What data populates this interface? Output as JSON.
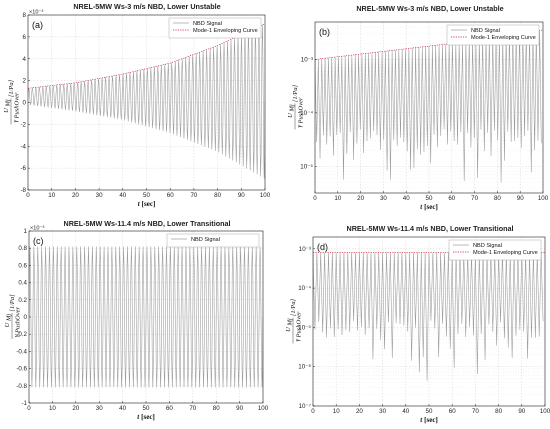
{
  "chart_data": [
    {
      "type": "line",
      "panel_label": "(a)",
      "title": "NREL-5MW Ws-3 m/s NBD, Lower Unstable",
      "xlabel_var": "t",
      "xlabel_unit": "[sec]",
      "ylabel_html": "U_Mj / γ_PushOver [1/Pa]",
      "yscale": "linear",
      "exponent_label": "×10⁻³",
      "xlim": [
        0,
        100
      ],
      "ylim": [
        -8,
        8
      ],
      "xticks": [
        "0",
        "10",
        "20",
        "30",
        "40",
        "50",
        "60",
        "70",
        "80",
        "90",
        "100"
      ],
      "yticks": [
        "-8",
        "-6",
        "-4",
        "-2",
        "0",
        "2",
        "4",
        "6",
        "8"
      ],
      "legend": [
        "NBD Signal",
        "Mode-1 Enveloping Curve"
      ],
      "legend_position": "top-right",
      "grid": true,
      "series": [
        {
          "name": "NBD Signal",
          "kind": "oscillation",
          "cycles": 68,
          "envelope_x": [
            0,
            20,
            40,
            60,
            80,
            100
          ],
          "envelope_upper": [
            1.3,
            1.8,
            2.6,
            3.6,
            5.2,
            7.2
          ],
          "envelope_lower": [
            -0.2,
            -0.8,
            -1.6,
            -2.8,
            -4.5,
            -7.0
          ]
        },
        {
          "name": "Mode-1 Enveloping Curve",
          "kind": "envelope",
          "x": [
            0,
            20,
            40,
            60,
            80,
            100
          ],
          "y": [
            1.3,
            1.8,
            2.6,
            3.6,
            5.2,
            7.2
          ]
        }
      ]
    },
    {
      "type": "line",
      "panel_label": "(b)",
      "title": "NREL-5MW Ws-3 m/s NBD, Lower Unstable",
      "xlabel_var": "t",
      "xlabel_unit": "[sec]",
      "ylabel_html": "U_Mj / γ_PushOver [1/Pa]",
      "yscale": "log",
      "xlim": [
        0,
        100
      ],
      "ylim_exp": [
        -5.5,
        -2.3
      ],
      "xticks": [
        "0",
        "10",
        "20",
        "30",
        "40",
        "50",
        "60",
        "70",
        "80",
        "90",
        "100"
      ],
      "yticks": [
        "10⁻⁵",
        "10⁻⁴",
        "10⁻³"
      ],
      "legend": [
        "NBD Signal",
        "Mode-1 Enveloping Curve"
      ],
      "legend_position": "top-right",
      "grid": true,
      "series": [
        {
          "name": "NBD Signal",
          "kind": "oscillation-log",
          "cycles": 68,
          "envelope_x": [
            0,
            20,
            40,
            60,
            80,
            100
          ],
          "envelope_upper_log10": [
            -3.0,
            -2.9,
            -2.8,
            -2.7,
            -2.55,
            -2.45
          ],
          "floor_log10": -4.3,
          "deep_min_log10": -5.3
        },
        {
          "name": "Mode-1 Enveloping Curve",
          "kind": "envelope",
          "x": [
            0,
            20,
            40,
            60,
            80,
            100
          ],
          "y_log10": [
            -3.0,
            -2.9,
            -2.8,
            -2.7,
            -2.55,
            -2.45
          ]
        }
      ]
    },
    {
      "type": "line",
      "panel_label": "(c)",
      "title": "NREL-5MW Ws-11.4 m/s NBD, Lower Transitional",
      "xlabel_var": "t",
      "xlabel_unit": "[sec]",
      "ylabel_html": "U_Mj / γ_PushOver [1/Pa]",
      "yscale": "linear",
      "exponent_label": "×10⁻³",
      "xlim": [
        0,
        100
      ],
      "ylim": [
        -1,
        1
      ],
      "xticks": [
        "0",
        "10",
        "20",
        "30",
        "40",
        "50",
        "60",
        "70",
        "80",
        "90",
        "100"
      ],
      "yticks": [
        "-1",
        "-0.8",
        "-0.6",
        "-0.4",
        "-0.2",
        "0",
        "0.2",
        "0.4",
        "0.6",
        "0.8",
        "1"
      ],
      "legend": [
        "NBD Signal"
      ],
      "legend_position": "top-right",
      "grid": true,
      "series": [
        {
          "name": "NBD Signal",
          "kind": "oscillation",
          "cycles": 60,
          "envelope_x": [
            0,
            100
          ],
          "envelope_upper": [
            0.82,
            0.82
          ],
          "envelope_lower": [
            -0.82,
            -0.82
          ]
        }
      ]
    },
    {
      "type": "line",
      "panel_label": "(d)",
      "title": "NREL-5MW Ws-11.4 m/s NBD, Lower Transitional",
      "xlabel_var": "t",
      "xlabel_unit": "[sec]",
      "ylabel_html": "U_Mj / γ_PushOver [1/Pa]",
      "yscale": "log",
      "xlim": [
        0,
        100
      ],
      "ylim_exp": [
        -7,
        -2.7
      ],
      "xticks": [
        "0",
        "10",
        "20",
        "30",
        "40",
        "50",
        "60",
        "70",
        "80",
        "90",
        "100"
      ],
      "yticks": [
        "10⁻⁷",
        "10⁻⁶",
        "10⁻⁵",
        "10⁻⁴",
        "10⁻³"
      ],
      "legend": [
        "NBD Signal",
        "Mode-1 Enveloping Curve"
      ],
      "legend_position": "top-right",
      "grid": true,
      "series": [
        {
          "name": "NBD Signal",
          "kind": "oscillation-log",
          "cycles": 60,
          "envelope_x": [
            0,
            100
          ],
          "envelope_upper_log10": [
            -3.1,
            -3.1
          ],
          "floor_log10": -4.8,
          "deep_min_log10": -6.4
        },
        {
          "name": "Mode-1 Enveloping Curve",
          "kind": "envelope",
          "x": [
            0,
            100
          ],
          "y_log10": [
            -3.1,
            -3.1
          ]
        }
      ]
    }
  ],
  "colors": {
    "signal": "#9a9a9a",
    "envelope": "#c8102e",
    "grid": "#d6d6d6",
    "axis": "#222222"
  }
}
